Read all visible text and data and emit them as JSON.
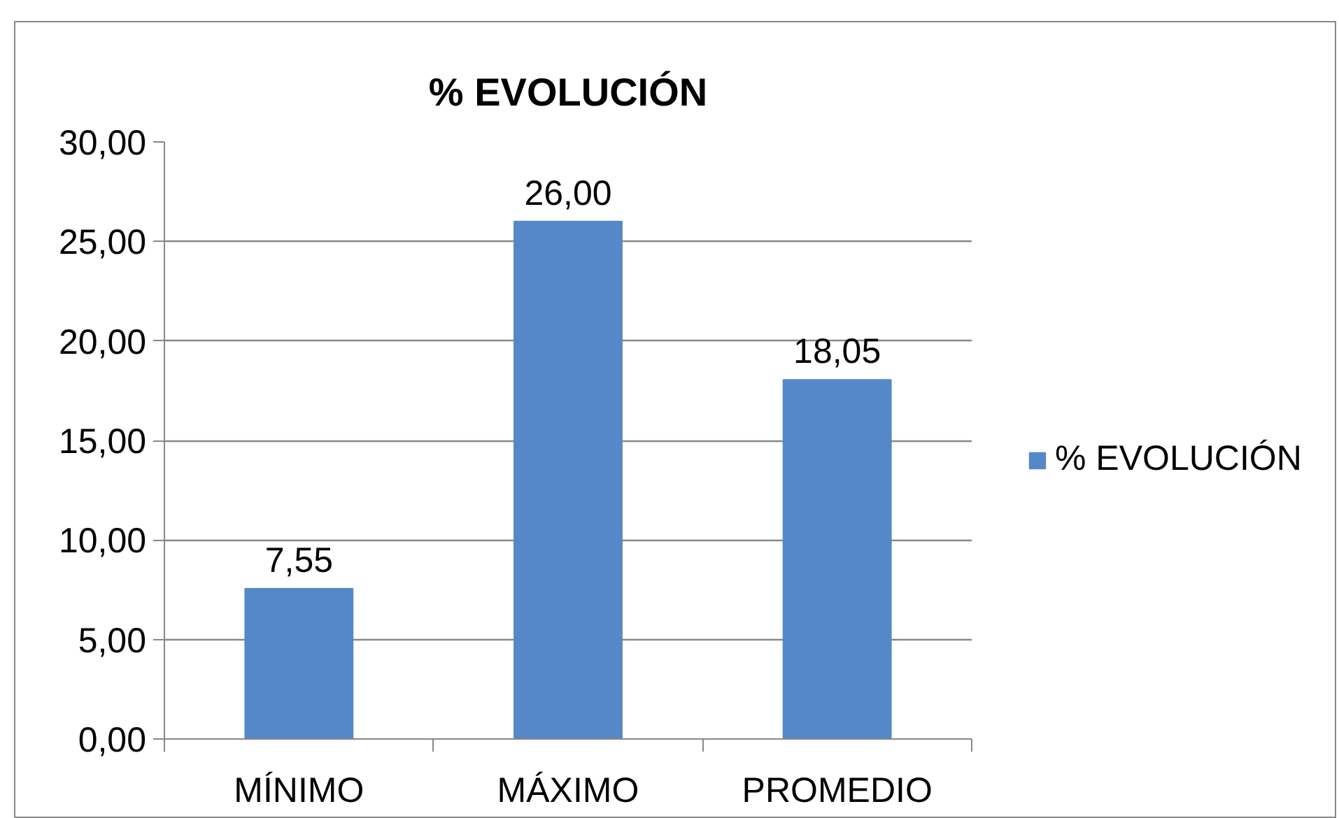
{
  "chart_data": {
    "type": "bar",
    "title": "% EVOLUCIÓN",
    "categories": [
      "MÍNIMO",
      "MÁXIMO",
      "PROMEDIO"
    ],
    "series": [
      {
        "name": "% EVOLUCIÓN",
        "color": "#5588c8",
        "values": [
          7.55,
          26.0,
          18.05
        ],
        "value_labels": [
          "7,55",
          "26,00",
          "18,05"
        ]
      }
    ],
    "ylim": [
      0,
      30
    ],
    "yticks": [
      {
        "value": 0,
        "label": "0,00"
      },
      {
        "value": 5,
        "label": "5,00"
      },
      {
        "value": 10,
        "label": "10,00"
      },
      {
        "value": 15,
        "label": "15,00"
      },
      {
        "value": 20,
        "label": "20,00"
      },
      {
        "value": 25,
        "label": "25,00"
      },
      {
        "value": 30,
        "label": "30,00"
      }
    ],
    "grid": "y",
    "legend": "right"
  }
}
